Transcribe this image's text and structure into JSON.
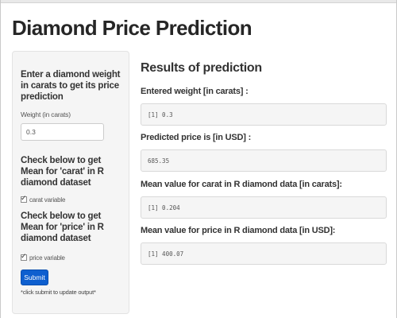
{
  "app": {
    "title": "Diamond Price Prediction"
  },
  "sidebar": {
    "weight_heading": "Enter a diamond weight in carats to get its price prediction",
    "weight_label": "Weight (in carats)",
    "weight_value": "0.3",
    "carat_heading": "Check below to get Mean for 'carat' in R diamond dataset",
    "carat_checkbox": {
      "label": "carat variable",
      "checked": true
    },
    "price_heading": "Check below to get Mean for 'price' in R diamond dataset",
    "price_checkbox": {
      "label": "price variable",
      "checked": true
    },
    "submit_label": "Submit",
    "hint": "*click submit to update output*",
    "check_glyph": "✓"
  },
  "results": {
    "title": "Results of prediction",
    "weight_label": "Entered weight [in carats] :",
    "weight_output": "[1] 0.3",
    "price_label": "Predicted price is [in USD] :",
    "price_output": "685.35",
    "mean_carat_label": "Mean value for carat in R diamond data [in carats]:",
    "mean_carat_output": "[1] 0.204",
    "mean_price_label": "Mean value for price in R diamond data [in USD]:",
    "mean_price_output": "[1] 400.07"
  },
  "colors": {
    "submit_button": "#0e5fcf",
    "sidebar_background": "#f5f5f5",
    "output_background": "#f5f5f5"
  }
}
